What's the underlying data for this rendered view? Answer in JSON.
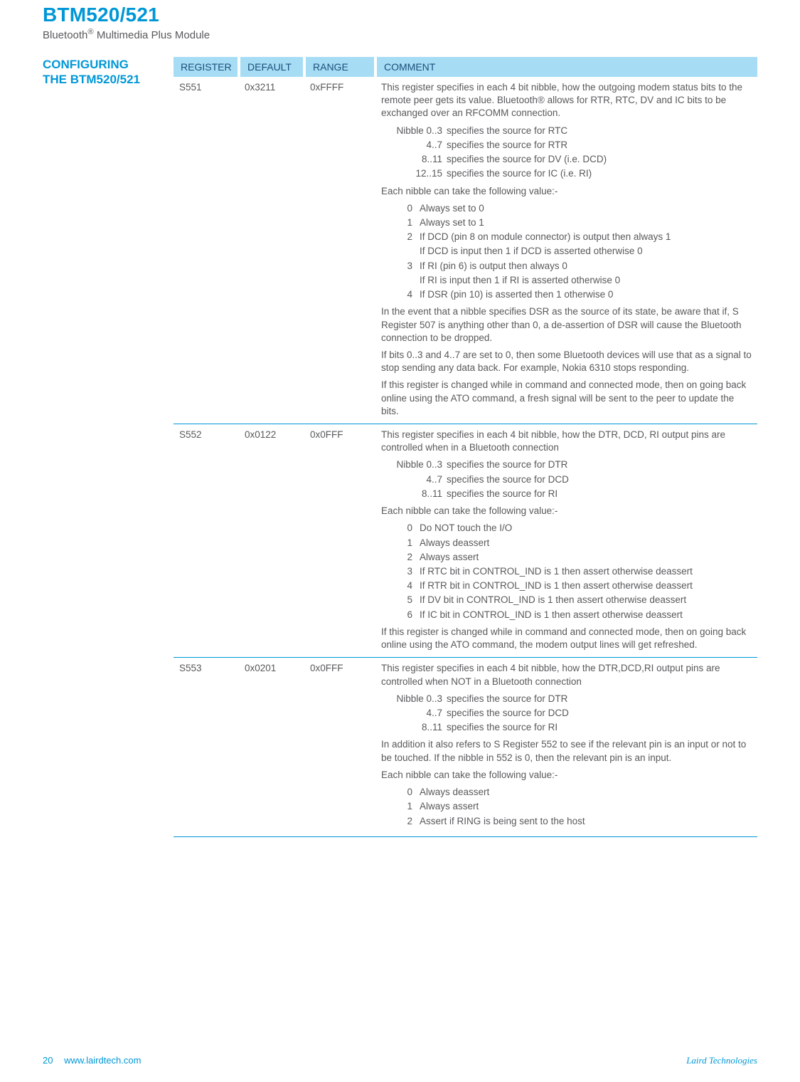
{
  "header": {
    "product_title": "BTM520/521",
    "product_subtitle_prefix": "Bluetooth",
    "product_subtitle_suffix": " Multimedia Plus Module"
  },
  "section_title_line1": "CONFIGURING",
  "section_title_line2": "THE BTM520/521",
  "table": {
    "headers": {
      "c1": "REGISTER",
      "c2": "DEFAULT",
      "c3": "RANGE",
      "c4": "COMMENT"
    },
    "rows": [
      {
        "register": "S551",
        "default": "0x3211",
        "range": "0xFFFF",
        "comment": {
          "intro": "This register specifies in each 4 bit nibble, how the outgoing modem status bits to the remote peer gets its value. Bluetooth® allows for RTR, RTC, DV and IC bits to be exchanged over an RFCOMM connection.",
          "nibble_leader": "Nibble",
          "nibbles": [
            {
              "k": "0..3",
              "v": "specifies the source for RTC"
            },
            {
              "k": "4..7",
              "v": "specifies the source for RTR"
            },
            {
              "k": "8..11",
              "v": "specifies the source for DV (i.e. DCD)"
            },
            {
              "k": "12..15",
              "v": "specifies the source for IC (i.e. RI)"
            }
          ],
          "values_leader": "Each nibble can take the following value:-",
          "values": [
            {
              "k": "0",
              "v": "Always set to 0"
            },
            {
              "k": "1",
              "v": "Always set to 1"
            },
            {
              "k": "2",
              "v": "If DCD (pin 8 on module connector) is output then always 1"
            },
            {
              "k": "",
              "v": "If DCD is input then 1 if DCD is asserted otherwise 0"
            },
            {
              "k": "3",
              "v": "If RI (pin 6) is output then always 0"
            },
            {
              "k": "",
              "v": "If RI is input then 1 if RI is asserted otherwise 0"
            },
            {
              "k": "4",
              "v": "If DSR (pin 10) is asserted then 1 otherwise 0"
            }
          ],
          "tail": [
            "In the event that a nibble specifies DSR as the source of its state, be aware that if, S Register 507 is anything other than 0, a de-assertion of DSR will cause the Bluetooth connection to be dropped.",
            "If bits 0..3 and 4..7 are set to 0, then some Bluetooth devices will use that as a signal to stop sending any data back. For example, Nokia 6310 stops responding.",
            "If this register is changed while in command and connected mode, then on going back online using the ATO command, a fresh signal will be sent to the peer to update the bits."
          ]
        }
      },
      {
        "register": "S552",
        "default": "0x0122",
        "range": "0x0FFF",
        "comment": {
          "intro": "This register specifies in each 4 bit nibble, how the DTR, DCD, RI output pins are controlled when in a Bluetooth connection",
          "nibble_leader": "Nibble",
          "nibbles": [
            {
              "k": "0..3",
              "v": "specifies the source for DTR"
            },
            {
              "k": "4..7",
              "v": "specifies the source for DCD"
            },
            {
              "k": "8..11",
              "v": "specifies the source for RI"
            }
          ],
          "values_leader": "Each nibble can take the following value:-",
          "values": [
            {
              "k": "0",
              "v": "Do NOT touch the I/O"
            },
            {
              "k": "1",
              "v": "Always deassert"
            },
            {
              "k": "2",
              "v": "Always assert"
            },
            {
              "k": "3",
              "v": "If RTC bit in CONTROL_IND is 1 then assert otherwise deassert"
            },
            {
              "k": "4",
              "v": "If RTR bit in CONTROL_IND is 1 then assert otherwise deassert"
            },
            {
              "k": "5",
              "v": "If DV bit in CONTROL_IND is 1 then assert otherwise deassert"
            },
            {
              "k": "6",
              "v": "If IC bit in CONTROL_IND is 1 then assert otherwise deassert"
            }
          ],
          "tail": [
            "If this register is changed while in command and connected mode, then on going back online using the ATO command, the modem output lines will get refreshed."
          ]
        }
      },
      {
        "register": "S553",
        "default": "0x0201",
        "range": "0x0FFF",
        "comment": {
          "intro": "This register specifies in each 4 bit nibble, how the DTR,DCD,RI output pins are controlled when NOT in a Bluetooth connection",
          "nibble_leader": "Nibble",
          "nibbles": [
            {
              "k": "0..3",
              "v": "specifies the source for DTR"
            },
            {
              "k": "4..7",
              "v": "specifies the source for DCD"
            },
            {
              "k": "8..11",
              "v": "specifies the source for RI"
            }
          ],
          "mid": [
            "In addition it also refers to S Register 552 to see if the relevant pin is an input or not to be touched. If the nibble in 552 is 0, then the relevant pin is an input."
          ],
          "values_leader": "Each nibble can take the following value:-",
          "values": [
            {
              "k": "0",
              "v": "Always deassert"
            },
            {
              "k": "1",
              "v": "Always assert"
            },
            {
              "k": "2",
              "v": "Assert if RING is being sent to the host"
            }
          ],
          "tail": []
        }
      }
    ]
  },
  "footer": {
    "page_number": "20",
    "url": "www.lairdtech.com",
    "company": "Laird Technologies"
  },
  "colors": {
    "accent": "#0097d6",
    "header_bg": "#a6ddf4",
    "header_text": "#1b4f7a",
    "body_text": "#58595b"
  }
}
